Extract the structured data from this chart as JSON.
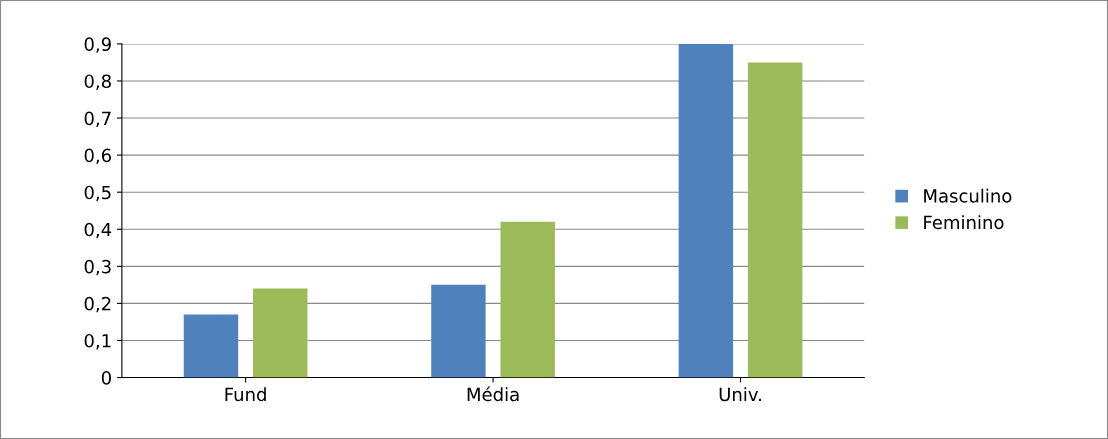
{
  "chart_data": {
    "type": "bar",
    "categories": [
      "Fund",
      "Média",
      "Univ."
    ],
    "series": [
      {
        "name": "Masculino",
        "color": "#4f81bd",
        "values": [
          0.17,
          0.25,
          0.9
        ]
      },
      {
        "name": "Feminino",
        "color": "#9bbb59",
        "values": [
          0.24,
          0.42,
          0.85
        ]
      }
    ],
    "ylim": [
      0,
      0.9
    ],
    "yticks": [
      0,
      {
        "value": 0.1,
        "label": "0,1"
      },
      {
        "value": 0.2,
        "label": "0,2"
      },
      {
        "value": 0.3,
        "label": "0,3"
      },
      {
        "value": 0.4,
        "label": "0,4"
      },
      {
        "value": 0.5,
        "label": "0,5"
      },
      {
        "value": 0.6,
        "label": "0,6"
      },
      {
        "value": 0.7,
        "label": "0,7"
      },
      {
        "value": 0.8,
        "label": "0,8"
      },
      {
        "value": 0.9,
        "label": "0,9"
      }
    ],
    "grid": "y",
    "legend": "right"
  }
}
